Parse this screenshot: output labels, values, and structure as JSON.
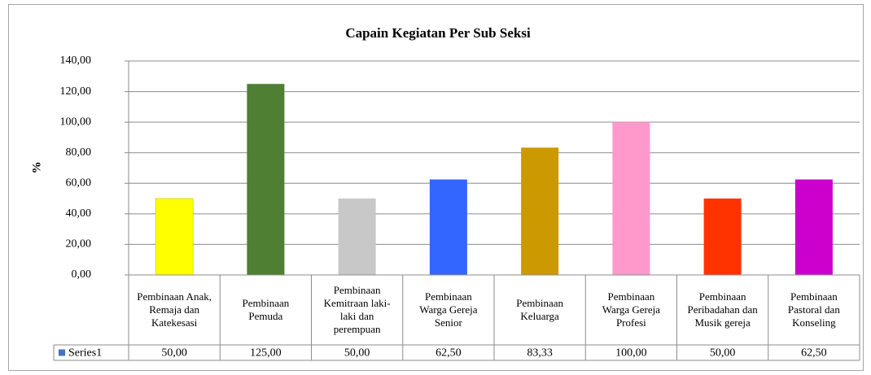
{
  "chart_data": {
    "type": "bar",
    "title": "Capain Kegiatan Per Sub Seksi",
    "y_label": "%",
    "categories": [
      "Pembinaan Anak, Remaja dan Katekesasi",
      "Pembinaan Pemuda",
      "Pembinaan Kemitraan laki-laki dan perempuan",
      "Pembinaan Warga Gereja Senior",
      "Pembinaan Keluarga",
      "Pembinaan Warga Gereja Profesi",
      "Pembinaan Peribadahan dan Musik gereja",
      "Pembinaan Pastoral dan Konseling"
    ],
    "series": [
      {
        "name": "Series1",
        "color": "#4472c4",
        "values": [
          50,
          125,
          50,
          62.5,
          83.33,
          100,
          50,
          62.5
        ],
        "value_labels": [
          "50,00",
          "125,00",
          "50,00",
          "62,50",
          "83,33",
          "100,00",
          "50,00",
          "62,50"
        ]
      }
    ],
    "colors": [
      "#ffff00",
      "#4e7f33",
      "#c8c8c8",
      "#3366ff",
      "#cc9900",
      "#ff99cc",
      "#ff3300",
      "#cc00cc"
    ],
    "ylim": [
      0,
      140
    ],
    "yticks": [
      {
        "value": 0,
        "label": "0,00"
      },
      {
        "value": 20,
        "label": "20,00"
      },
      {
        "value": 40,
        "label": "40,00"
      },
      {
        "value": 60,
        "label": "60,00"
      },
      {
        "value": 80,
        "label": "80,00"
      },
      {
        "value": 100,
        "label": "100,00"
      },
      {
        "value": 120,
        "label": "120,00"
      },
      {
        "value": 140,
        "label": "140,00"
      }
    ],
    "grid": true
  }
}
